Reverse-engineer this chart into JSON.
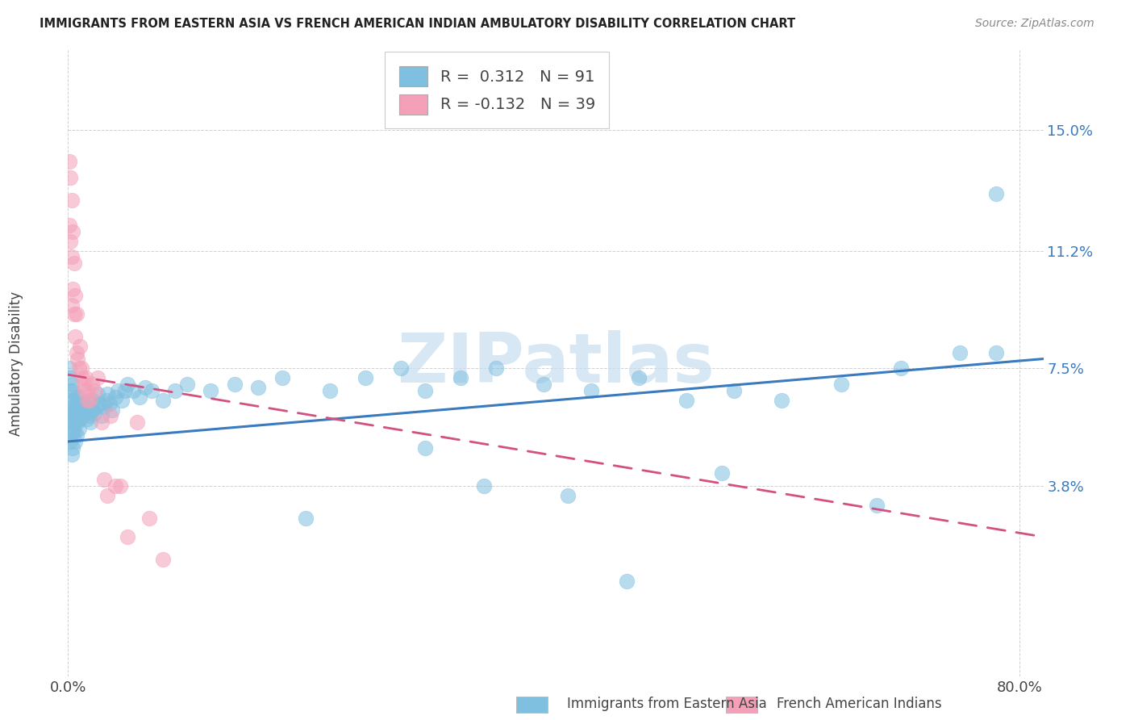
{
  "title": "IMMIGRANTS FROM EASTERN ASIA VS FRENCH AMERICAN INDIAN AMBULATORY DISABILITY CORRELATION CHART",
  "source": "Source: ZipAtlas.com",
  "xlabel_blue": "Immigrants from Eastern Asia",
  "xlabel_pink": "French American Indians",
  "ylabel": "Ambulatory Disability",
  "R_blue": 0.312,
  "N_blue": 91,
  "R_pink": -0.132,
  "N_pink": 39,
  "xlim": [
    0.0,
    0.82
  ],
  "ylim": [
    -0.022,
    0.175
  ],
  "ytick_vals": [
    0.038,
    0.075,
    0.112,
    0.15
  ],
  "ytick_labels": [
    "3.8%",
    "7.5%",
    "11.2%",
    "15.0%"
  ],
  "xtick_vals": [
    0.0,
    0.8
  ],
  "xtick_labels": [
    "0.0%",
    "80.0%"
  ],
  "color_blue": "#7fbfdf",
  "color_blue_line": "#3a7abf",
  "color_pink": "#f4a0b8",
  "color_pink_line": "#d45080",
  "ytick_color": "#3a7abf",
  "background_color": "#ffffff",
  "watermark": "ZIPatlas",
  "watermark_color": "#c8ddf0",
  "blue_line_x0": 0.0,
  "blue_line_x1": 0.82,
  "blue_line_y0": 0.052,
  "blue_line_y1": 0.078,
  "pink_line_x0": 0.0,
  "pink_line_x1": 0.82,
  "pink_line_y0": 0.073,
  "pink_line_y1": 0.022,
  "blue_x": [
    0.001,
    0.001,
    0.001,
    0.002,
    0.002,
    0.002,
    0.002,
    0.003,
    0.003,
    0.003,
    0.003,
    0.004,
    0.004,
    0.004,
    0.004,
    0.005,
    0.005,
    0.005,
    0.006,
    0.006,
    0.006,
    0.007,
    0.007,
    0.007,
    0.008,
    0.008,
    0.009,
    0.009,
    0.01,
    0.01,
    0.011,
    0.012,
    0.013,
    0.014,
    0.015,
    0.016,
    0.017,
    0.018,
    0.019,
    0.02,
    0.021,
    0.022,
    0.024,
    0.025,
    0.026,
    0.028,
    0.03,
    0.032,
    0.033,
    0.035,
    0.037,
    0.04,
    0.042,
    0.045,
    0.048,
    0.05,
    0.055,
    0.06,
    0.065,
    0.07,
    0.08,
    0.09,
    0.1,
    0.12,
    0.14,
    0.16,
    0.18,
    0.22,
    0.25,
    0.28,
    0.3,
    0.33,
    0.36,
    0.4,
    0.44,
    0.48,
    0.52,
    0.56,
    0.6,
    0.65,
    0.7,
    0.75,
    0.78,
    0.42,
    0.3,
    0.2,
    0.47,
    0.35,
    0.55,
    0.68,
    0.78
  ],
  "blue_y": [
    0.075,
    0.065,
    0.058,
    0.072,
    0.068,
    0.06,
    0.052,
    0.07,
    0.063,
    0.055,
    0.048,
    0.068,
    0.061,
    0.056,
    0.05,
    0.065,
    0.06,
    0.055,
    0.063,
    0.058,
    0.052,
    0.066,
    0.06,
    0.054,
    0.064,
    0.058,
    0.062,
    0.056,
    0.066,
    0.059,
    0.062,
    0.06,
    0.064,
    0.063,
    0.061,
    0.059,
    0.063,
    0.06,
    0.058,
    0.062,
    0.065,
    0.061,
    0.063,
    0.067,
    0.064,
    0.06,
    0.063,
    0.065,
    0.067,
    0.064,
    0.062,
    0.066,
    0.068,
    0.065,
    0.068,
    0.07,
    0.068,
    0.066,
    0.069,
    0.068,
    0.065,
    0.068,
    0.07,
    0.068,
    0.07,
    0.069,
    0.072,
    0.068,
    0.072,
    0.075,
    0.068,
    0.072,
    0.075,
    0.07,
    0.068,
    0.072,
    0.065,
    0.068,
    0.065,
    0.07,
    0.075,
    0.08,
    0.13,
    0.035,
    0.05,
    0.028,
    0.008,
    0.038,
    0.042,
    0.032,
    0.08
  ],
  "pink_x": [
    0.001,
    0.001,
    0.002,
    0.002,
    0.003,
    0.003,
    0.003,
    0.004,
    0.004,
    0.005,
    0.005,
    0.006,
    0.006,
    0.007,
    0.007,
    0.008,
    0.009,
    0.01,
    0.011,
    0.012,
    0.013,
    0.014,
    0.015,
    0.016,
    0.017,
    0.018,
    0.02,
    0.022,
    0.025,
    0.028,
    0.03,
    0.033,
    0.036,
    0.04,
    0.044,
    0.05,
    0.058,
    0.068,
    0.08
  ],
  "pink_y": [
    0.14,
    0.12,
    0.135,
    0.115,
    0.128,
    0.11,
    0.095,
    0.118,
    0.1,
    0.108,
    0.092,
    0.098,
    0.085,
    0.092,
    0.08,
    0.078,
    0.075,
    0.082,
    0.075,
    0.072,
    0.07,
    0.068,
    0.072,
    0.065,
    0.068,
    0.065,
    0.07,
    0.068,
    0.072,
    0.058,
    0.04,
    0.035,
    0.06,
    0.038,
    0.038,
    0.022,
    0.058,
    0.028,
    0.015
  ]
}
